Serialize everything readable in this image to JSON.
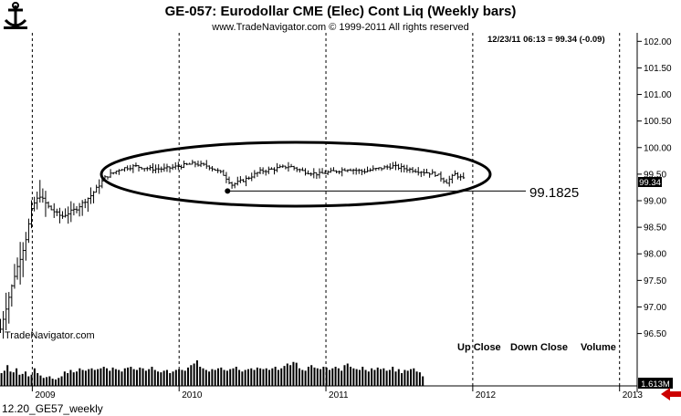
{
  "header": {
    "title": "GE-057:  Eurodollar CME (Elec) Cont Liq  (Weekly bars)",
    "copyright": "www.TradeNavigator.com © 1999-2011 All rights reserved",
    "quote": "12/23/11 06:13 = 99.34 (-0.09)"
  },
  "watermark": "TradeNavigator.com",
  "footer_label": "12.20_GE57_weekly",
  "volume_legend": {
    "up": "Up Close",
    "down": "Down Close",
    "volume": "Volume"
  },
  "last_price_label": "99.34",
  "volume_readout": "1.613M",
  "annotation": {
    "label": "99.1825",
    "value": 99.1825,
    "x": 2010.33
  },
  "colors": {
    "background": "#ffffff",
    "bars": "#000000",
    "marker": "#cc0000"
  },
  "chart_data": {
    "type": "ohlc",
    "title": "GE-057:  Eurodollar CME (Elec) Cont Liq  (Weekly bars)",
    "xlim": [
      2008.78,
      2013.12
    ],
    "ylim": [
      96.39,
      102.16
    ],
    "y_ticks": [
      96.5,
      97.0,
      97.5,
      98.0,
      98.5,
      99.0,
      99.5,
      100.0,
      100.5,
      101.0,
      101.5,
      102.0
    ],
    "y_tick_labels": [
      "96.50",
      "97.00",
      "97.50",
      "98.00",
      "98.50",
      "99.00",
      "99.50",
      "100.00",
      "100.50",
      "101.00",
      "101.50",
      "102.00"
    ],
    "x_ticks": [
      2009,
      2010,
      2011,
      2012,
      2013
    ],
    "x_tick_labels": [
      "2009",
      "2010",
      "2011",
      "2012",
      "2013"
    ],
    "grid": "vertical-dashed-at-years",
    "price_points": [
      {
        "x": 2008.78,
        "y": 96.55
      },
      {
        "x": 2008.88,
        "y": 97.6
      },
      {
        "x": 2008.95,
        "y": 98.2
      },
      {
        "x": 2009.0,
        "y": 98.9
      },
      {
        "x": 2009.05,
        "y": 99.1
      },
      {
        "x": 2009.12,
        "y": 98.85
      },
      {
        "x": 2009.2,
        "y": 98.7
      },
      {
        "x": 2009.3,
        "y": 98.85
      },
      {
        "x": 2009.4,
        "y": 99.1
      },
      {
        "x": 2009.5,
        "y": 99.45
      },
      {
        "x": 2009.6,
        "y": 99.6
      },
      {
        "x": 2009.7,
        "y": 99.65
      },
      {
        "x": 2009.8,
        "y": 99.6
      },
      {
        "x": 2009.9,
        "y": 99.6
      },
      {
        "x": 2010.0,
        "y": 99.65
      },
      {
        "x": 2010.1,
        "y": 99.7
      },
      {
        "x": 2010.2,
        "y": 99.65
      },
      {
        "x": 2010.3,
        "y": 99.5
      },
      {
        "x": 2010.36,
        "y": 99.3
      },
      {
        "x": 2010.45,
        "y": 99.4
      },
      {
        "x": 2010.55,
        "y": 99.55
      },
      {
        "x": 2010.65,
        "y": 99.6
      },
      {
        "x": 2010.75,
        "y": 99.65
      },
      {
        "x": 2010.85,
        "y": 99.55
      },
      {
        "x": 2010.95,
        "y": 99.5
      },
      {
        "x": 2011.05,
        "y": 99.55
      },
      {
        "x": 2011.15,
        "y": 99.6
      },
      {
        "x": 2011.25,
        "y": 99.55
      },
      {
        "x": 2011.35,
        "y": 99.6
      },
      {
        "x": 2011.45,
        "y": 99.65
      },
      {
        "x": 2011.55,
        "y": 99.6
      },
      {
        "x": 2011.65,
        "y": 99.55
      },
      {
        "x": 2011.75,
        "y": 99.5
      },
      {
        "x": 2011.82,
        "y": 99.35
      },
      {
        "x": 2011.88,
        "y": 99.5
      },
      {
        "x": 2011.95,
        "y": 99.38
      }
    ],
    "volume": {
      "start": 2008.79,
      "step": 0.0205,
      "values": [
        0.8,
        0.95,
        1.3,
        0.9,
        0.85,
        1.1,
        0.7,
        0.75,
        0.9,
        0.6,
        0.7,
        1.1,
        0.8,
        0.65,
        0.5,
        0.55,
        0.6,
        0.45,
        0.4,
        0.5,
        0.6,
        0.9,
        0.8,
        1.0,
        0.85,
        0.9,
        1.1,
        1.0,
        0.95,
        1.05,
        1.1,
        1.0,
        1.05,
        1.1,
        1.2,
        1.1,
        0.95,
        1.15,
        1.05,
        1.0,
        0.9,
        1.1,
        1.15,
        1.2,
        1.05,
        1.0,
        1.15,
        1.1,
        0.95,
        1.05,
        1.2,
        1.0,
        0.9,
        0.85,
        0.95,
        1.0,
        0.8,
        0.9,
        1.0,
        1.05,
        1.0,
        0.95,
        1.15,
        1.3,
        1.4,
        1.6,
        1.2,
        1.1,
        1.0,
        0.9,
        1.05,
        1.0,
        1.1,
        1.15,
        1.0,
        0.95,
        1.05,
        1.1,
        1.2,
        1.0,
        0.9,
        1.0,
        1.05,
        1.1,
        1.0,
        1.15,
        1.1,
        1.05,
        1.1,
        1.0,
        1.1,
        1.2,
        1.0,
        1.1,
        1.25,
        1.4,
        1.3,
        1.5,
        1.45,
        1.1,
        1.0,
        0.95,
        1.2,
        1.3,
        1.15,
        1.1,
        1.05,
        1.2,
        1.15,
        1.0,
        1.1,
        1.2,
        1.1,
        0.95,
        1.3,
        1.4,
        1.2,
        1.1,
        1.05,
        1.0,
        1.2,
        1.0,
        0.9,
        1.1,
        1.0,
        1.15,
        1.05,
        1.1,
        0.95,
        1.0,
        1.2,
        0.9,
        1.05,
        0.8,
        1.0,
        0.95,
        1.05,
        1.1,
        0.9,
        0.85,
        0.6
      ]
    }
  }
}
